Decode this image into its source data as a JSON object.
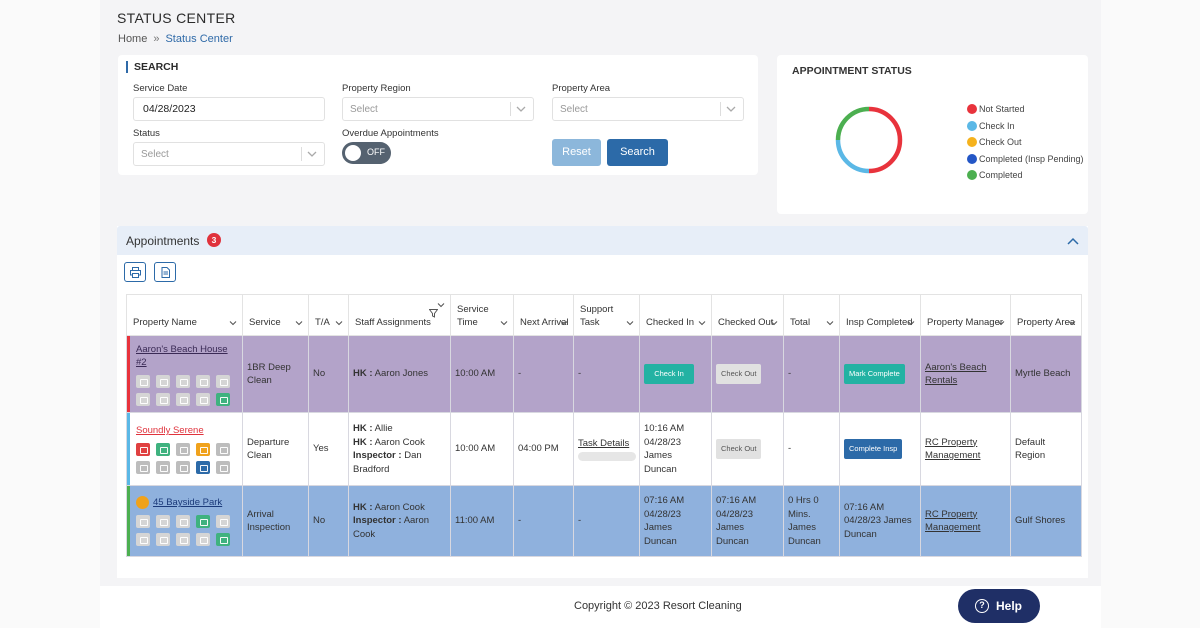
{
  "page": {
    "title": "STATUS CENTER"
  },
  "breadcrumb": {
    "home": "Home",
    "separator": "»",
    "current": "Status Center"
  },
  "search": {
    "title": "SEARCH",
    "service_date_label": "Service Date",
    "service_date_value": "04/28/2023",
    "property_region_label": "Property Region",
    "property_region_value": "Select",
    "property_area_label": "Property Area",
    "property_area_value": "Select",
    "status_label": "Status",
    "status_value": "Select",
    "overdue_label": "Overdue Appointments",
    "overdue_toggle": "OFF",
    "reset_label": "Reset",
    "search_label": "Search"
  },
  "appointment_status": {
    "title": "APPOINTMENT STATUS",
    "legend": [
      {
        "label": "Not Started",
        "color": "#e8333c"
      },
      {
        "label": "Check In",
        "color": "#5bb8e6"
      },
      {
        "label": "Check Out",
        "color": "#f5b21d"
      },
      {
        "label": "Completed (Insp Pending)",
        "color": "#2356c6"
      },
      {
        "label": "Completed",
        "color": "#4caf50"
      }
    ]
  },
  "appointments": {
    "title": "Appointments",
    "count": "3",
    "columns": [
      "Property Name",
      "Service",
      "T/A",
      "Staff Assignments",
      "Service Time",
      "Next Arrival",
      "Support Task",
      "Checked In",
      "Checked Out",
      "Total",
      "Insp Completed",
      "Property Manager",
      "Property Area"
    ],
    "rows": [
      {
        "property": "Aaron's Beach House #2",
        "service": "1BR Deep Clean",
        "ta": "No",
        "staff": [
          {
            "role": "HK :",
            "name": "Aaron Jones"
          }
        ],
        "service_time": "10:00 AM",
        "next_arrival": "-",
        "support_task": "-",
        "checked_in": "Check In",
        "checked_out": "Check Out",
        "total": "-",
        "insp": "Mark Complete",
        "manager": "Aaron's Beach Rentals",
        "area": "Myrtle Beach"
      },
      {
        "property": "Soundly Serene",
        "service": "Departure Clean",
        "ta": "Yes",
        "staff": [
          {
            "role": "HK :",
            "name": "Allie"
          },
          {
            "role": "HK :",
            "name": "Aaron Cook"
          },
          {
            "role": "Inspector :",
            "name": "Dan Bradford"
          }
        ],
        "service_time": "10:00 AM",
        "next_arrival": "04:00 PM",
        "support_task": "Task Details",
        "checked_in": "10:16 AM 04/28/23 James Duncan",
        "checked_out": "Check Out",
        "total": "-",
        "insp": "Complete Insp",
        "manager": "RC Property Management",
        "area": "Default Region"
      },
      {
        "property": "45 Bayside Park",
        "service": "Arrival Inspection",
        "ta": "No",
        "staff": [
          {
            "role": "HK :",
            "name": "Aaron Cook"
          },
          {
            "role": "Inspector :",
            "name": "Aaron Cook"
          }
        ],
        "service_time": "11:00 AM",
        "next_arrival": "-",
        "support_task": "-",
        "checked_in": "07:16 AM 04/28/23 James Duncan",
        "checked_out": "07:16 AM 04/28/23 James Duncan",
        "total": "0 Hrs 0 Mins. James Duncan",
        "insp": "07:16 AM 04/28/23 James Duncan",
        "manager": "RC Property Management",
        "area": "Gulf Shores"
      }
    ]
  },
  "footer": {
    "copyright": "Copyright © 2023 Resort Cleaning"
  },
  "help": {
    "label": "Help"
  }
}
